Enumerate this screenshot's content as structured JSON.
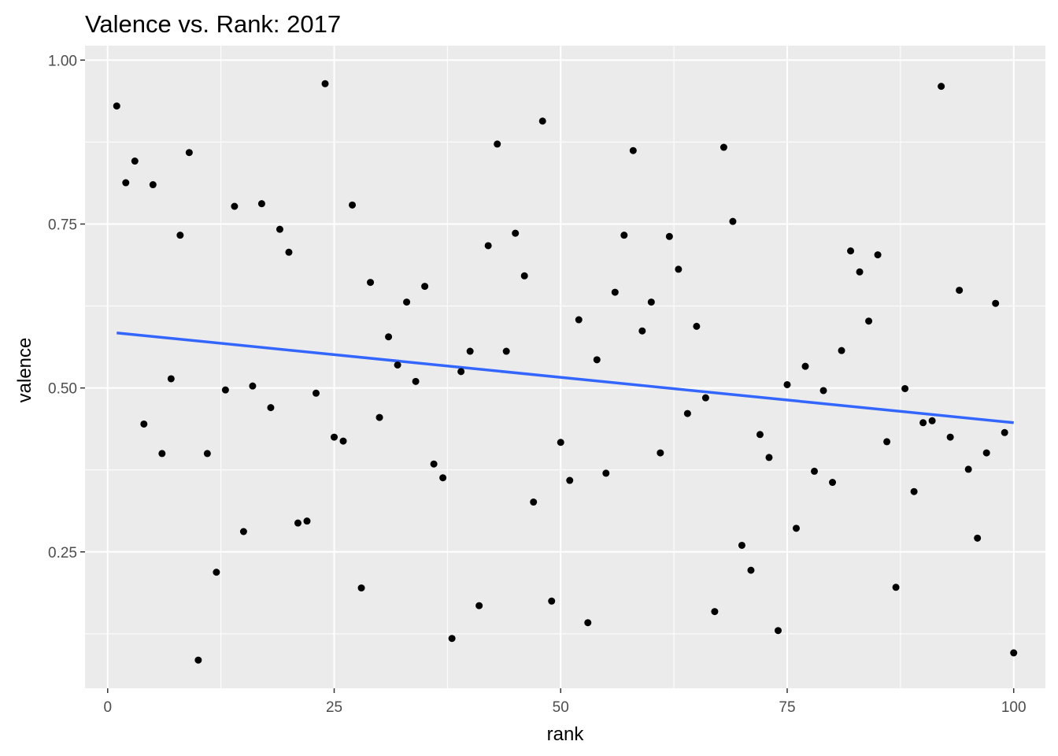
{
  "chart_data": {
    "type": "scatter",
    "title": "Valence vs. Rank: 2017",
    "xlabel": "rank",
    "ylabel": "valence",
    "xlim": [
      -2.5,
      103.5
    ],
    "ylim": [
      0.042,
      1.022
    ],
    "x_ticks": [
      0,
      25,
      50,
      75,
      100
    ],
    "x_tick_labels": [
      "0",
      "25",
      "50",
      "75",
      "100"
    ],
    "y_ticks": [
      0.25,
      0.5,
      0.75,
      1.0
    ],
    "y_tick_labels": [
      "0.25",
      "0.50",
      "0.75",
      "1.00"
    ],
    "grid": true,
    "background": "#ebebeb",
    "grid_color": "#ffffff",
    "point_color": "#000000",
    "trend_color": "#3366ff",
    "series": [
      {
        "x": [
          1,
          2,
          3,
          4,
          5,
          6,
          7,
          8,
          9,
          10,
          11,
          12,
          13,
          14,
          15,
          16,
          17,
          18,
          19,
          20,
          21,
          22,
          23,
          24,
          25,
          26,
          27,
          28,
          29,
          30,
          31,
          32,
          33,
          34,
          35,
          36,
          37,
          38,
          39,
          40,
          41,
          42,
          43,
          44,
          45,
          46,
          47,
          48,
          49,
          50,
          51,
          52,
          53,
          54,
          55,
          56,
          57,
          58,
          59,
          60,
          61,
          62,
          63,
          64,
          65,
          66,
          67,
          68,
          69,
          70,
          71,
          72,
          73,
          74,
          75,
          76,
          77,
          78,
          79,
          80,
          81,
          82,
          83,
          84,
          85,
          86,
          87,
          88,
          89,
          90,
          91,
          92,
          93,
          94,
          95,
          96,
          97,
          98,
          99,
          100
        ],
        "y": [
          0.93,
          0.813,
          0.846,
          0.445,
          0.81,
          0.4,
          0.514,
          0.733,
          0.859,
          0.085,
          0.4,
          0.219,
          0.497,
          0.777,
          0.281,
          0.503,
          0.781,
          0.47,
          0.742,
          0.707,
          0.294,
          0.297,
          0.492,
          0.964,
          0.425,
          0.419,
          0.779,
          0.195,
          0.661,
          0.455,
          0.578,
          0.535,
          0.631,
          0.51,
          0.655,
          0.384,
          0.363,
          0.118,
          0.525,
          0.556,
          0.168,
          0.717,
          0.872,
          0.556,
          0.736,
          0.671,
          0.326,
          0.907,
          0.175,
          0.417,
          0.359,
          0.604,
          0.142,
          0.543,
          0.37,
          0.646,
          0.733,
          0.862,
          0.587,
          0.631,
          0.401,
          0.731,
          0.681,
          0.461,
          0.594,
          0.485,
          0.159,
          0.867,
          0.754,
          0.26,
          0.222,
          0.429,
          0.394,
          0.13,
          0.505,
          0.286,
          0.533,
          0.373,
          0.496,
          0.356,
          0.557,
          0.709,
          0.677,
          0.602,
          0.703,
          0.418,
          0.196,
          0.499,
          0.342,
          0.447,
          0.45,
          0.96,
          0.425,
          0.649,
          0.376,
          0.271,
          0.401,
          0.629,
          0.432,
          0.096
        ]
      }
    ],
    "trend_line": {
      "method": "linear",
      "x": [
        1,
        100
      ],
      "y": [
        0.584,
        0.447
      ]
    }
  }
}
